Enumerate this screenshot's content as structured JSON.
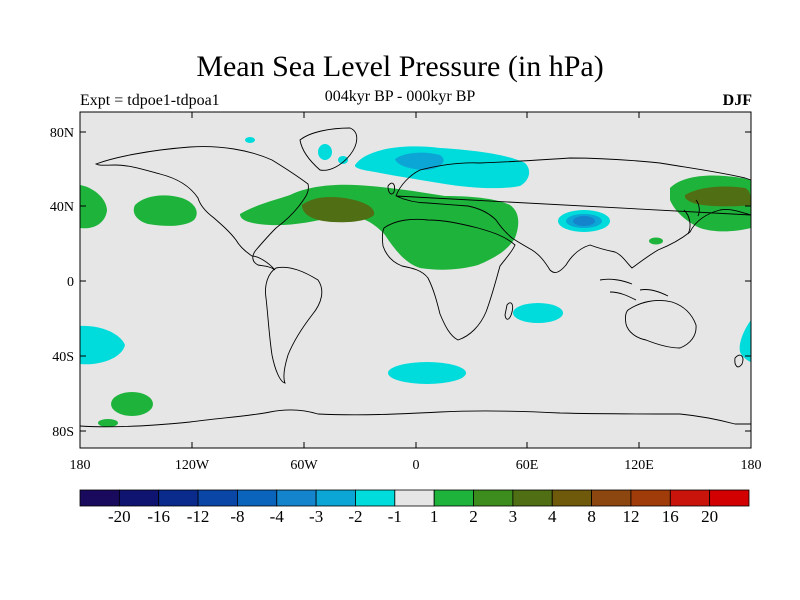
{
  "header": {
    "title": "Mean Sea Level Pressure (in hPa)",
    "left_label": "Expt = tdpoe1-tdpoa1",
    "center_label": "004kyr BP - 000kyr BP",
    "right_label": "DJF"
  },
  "axes": {
    "lat_ticks": [
      "80N",
      "40N",
      "0",
      "40S",
      "80S"
    ],
    "lon_ticks": [
      "180",
      "120W",
      "60W",
      "0",
      "60E",
      "120E",
      "180"
    ]
  },
  "colorbar": {
    "colors": [
      "#1a0a5e",
      "#0e1470",
      "#0a2a8c",
      "#0a46a6",
      "#0a64bc",
      "#1484cc",
      "#0ca6d6",
      "#00dcdc",
      "#e6e6e6",
      "#1eb43c",
      "#3c8c1e",
      "#506e14",
      "#6e5a0a",
      "#8c4610",
      "#a03c0a",
      "#c8140a",
      "#d20000"
    ],
    "labels": [
      "-20",
      "-16",
      "-12",
      "-8",
      "-4",
      "-3",
      "-2",
      "-1",
      "1",
      "2",
      "3",
      "4",
      "8",
      "12",
      "16",
      "20"
    ]
  },
  "map": {
    "projection": "cylindrical-equidistant",
    "lon_range": [
      -180,
      180
    ],
    "lat_range": [
      -90,
      90
    ],
    "neutral_color": "#e6e6e6",
    "anomaly_regions": [
      {
        "label": "N. Atlantic / Europe positive anomaly",
        "level": "1 to 2",
        "color": "#1eb43c"
      },
      {
        "label": "Mid-Atlantic positive core",
        "level": "3 to 4",
        "color": "#506e14"
      },
      {
        "label": "N. Africa positive anomaly",
        "level": "1 to 2",
        "color": "#1eb43c"
      },
      {
        "label": "N. Pacific positive anomaly",
        "level": "1 to 2",
        "color": "#1eb43c"
      },
      {
        "label": "N. Pacific positive core",
        "level": "3 to 4",
        "color": "#506e14"
      },
      {
        "label": "Arctic / N. Europe negative anomaly",
        "level": "-1 to -2",
        "color": "#00dcdc"
      },
      {
        "label": "Tibetan Plateau negative anomaly",
        "level": "-2 to -4",
        "color": "#1484cc"
      },
      {
        "label": "Southern Ocean negative anomalies",
        "level": "-1 to -2",
        "color": "#00dcdc"
      },
      {
        "label": "S. Pacific positive anomaly",
        "level": "1 to 2",
        "color": "#1eb43c"
      }
    ]
  }
}
